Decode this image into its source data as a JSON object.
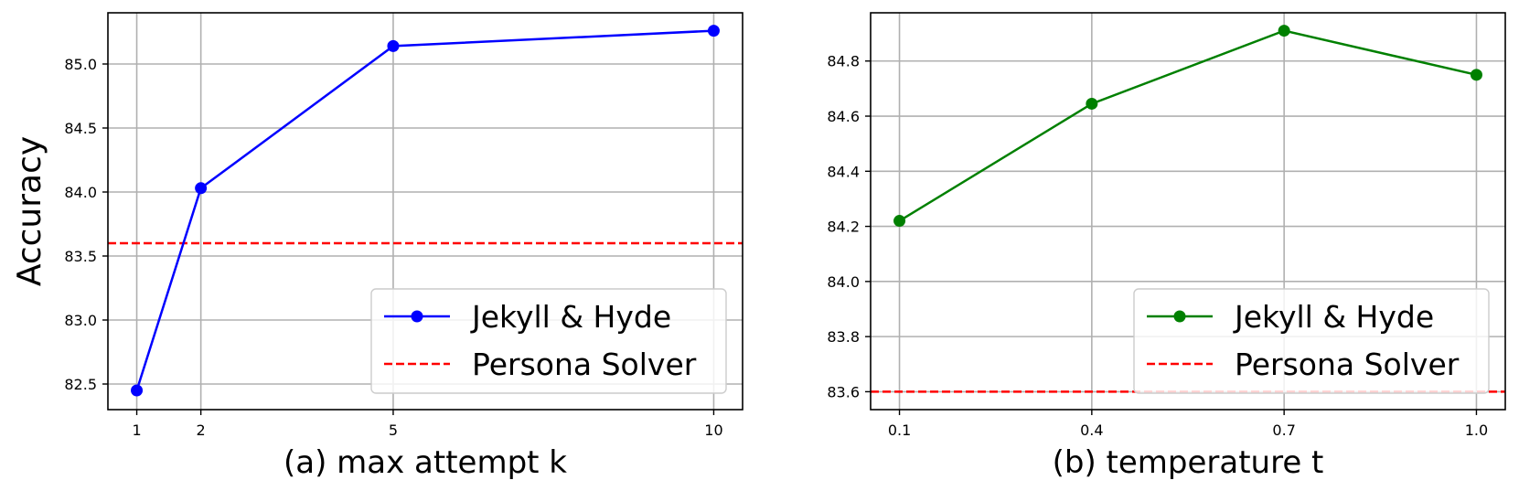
{
  "chart_data": [
    {
      "type": "line",
      "xlabel": "(a) max attempt k",
      "ylabel": "Accuracy",
      "xlim": [
        0.55,
        10.45
      ],
      "ylim": [
        82.3,
        85.4
      ],
      "xticks": [
        1,
        2,
        5,
        10
      ],
      "xtick_labels": [
        "1",
        "2",
        "5",
        "10"
      ],
      "yticks": [
        82.5,
        83.0,
        83.5,
        84.0,
        84.5,
        85.0
      ],
      "ytick_labels": [
        "82.5",
        "83.0",
        "83.5",
        "84.0",
        "84.5",
        "85.0"
      ],
      "grid": true,
      "legend_position": "lower-right",
      "series": [
        {
          "name": "Jekyll & Hyde",
          "style": "solid-marker",
          "color": "#0000ff",
          "x": [
            1,
            2,
            5,
            10
          ],
          "y": [
            82.45,
            84.03,
            85.14,
            85.26
          ]
        }
      ],
      "hlines": [
        {
          "name": "Persona Solver",
          "style": "dashed",
          "color": "#ff0000",
          "y": 83.6
        }
      ]
    },
    {
      "type": "line",
      "xlabel": "(b) temperature t",
      "ylabel": "",
      "xlim": [
        0.055,
        1.045
      ],
      "ylim": [
        83.535,
        84.975
      ],
      "xticks": [
        0.1,
        0.4,
        0.7,
        1.0
      ],
      "xtick_labels": [
        "0.1",
        "0.4",
        "0.7",
        "1.0"
      ],
      "yticks": [
        83.6,
        83.8,
        84.0,
        84.2,
        84.4,
        84.6,
        84.8
      ],
      "ytick_labels": [
        "83.6",
        "83.8",
        "84.0",
        "84.2",
        "84.4",
        "84.6",
        "84.8"
      ],
      "grid": true,
      "legend_position": "lower-right",
      "series": [
        {
          "name": "Jekyll & Hyde",
          "style": "solid-marker",
          "color": "#008000",
          "x": [
            0.1,
            0.4,
            0.7,
            1.0
          ],
          "y": [
            84.22,
            84.645,
            84.91,
            84.75
          ]
        }
      ],
      "hlines": [
        {
          "name": "Persona Solver",
          "style": "dashed",
          "color": "#ff0000",
          "y": 83.6
        }
      ]
    }
  ]
}
